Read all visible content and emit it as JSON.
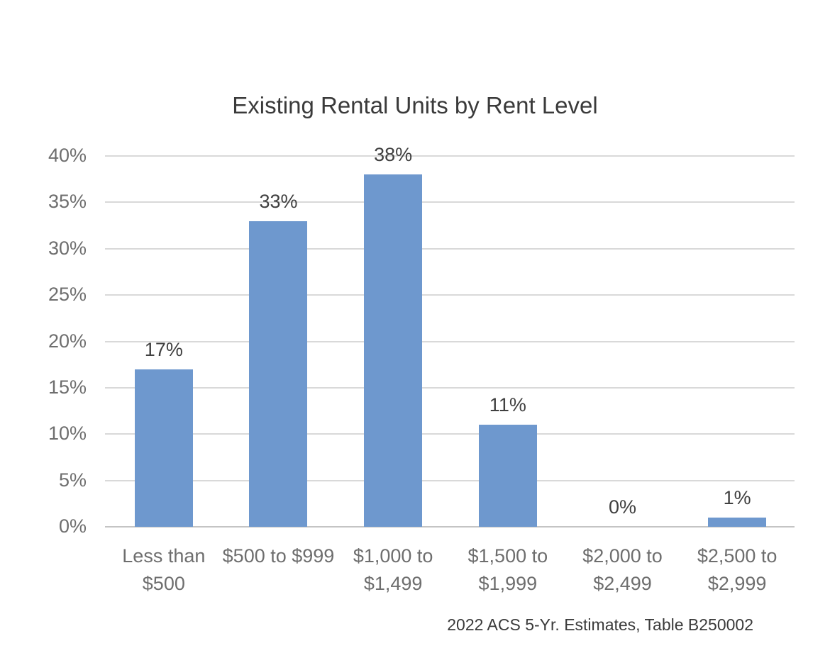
{
  "title": "Existing Rental Units by Rent Level",
  "source_note": "2022 ACS 5-Yr. Estimates, Table B250002",
  "colors": {
    "bar": "#6E98CE",
    "gridline": "#D9D9D9",
    "axis_line": "#C4C4C4",
    "title_text": "#3A3A3A",
    "data_label_text": "#404040",
    "tick_text": "#6E6E6E"
  },
  "chart_data": {
    "type": "bar",
    "title": "Existing Rental Units by Rent Level",
    "categories": [
      "Less than\n$500",
      "$500 to $999",
      "$1,000 to\n$1,499",
      "$1,500 to\n$1,999",
      "$2,000 to\n$2,499",
      "$2,500 to\n$2,999"
    ],
    "values": [
      17,
      33,
      38,
      11,
      0,
      1
    ],
    "data_labels": [
      "17%",
      "33%",
      "38%",
      "11%",
      "0%",
      "1%"
    ],
    "y_ticks": [
      0,
      5,
      10,
      15,
      20,
      25,
      30,
      35,
      40
    ],
    "y_tick_labels": [
      "0%",
      "5%",
      "10%",
      "15%",
      "20%",
      "25%",
      "30%",
      "35%",
      "40%"
    ],
    "ylim": [
      0,
      40
    ],
    "xlabel": "",
    "ylabel": "",
    "grid": "horizontal",
    "legend": "none",
    "source_note": "2022 ACS 5-Yr. Estimates, Table B250002"
  }
}
